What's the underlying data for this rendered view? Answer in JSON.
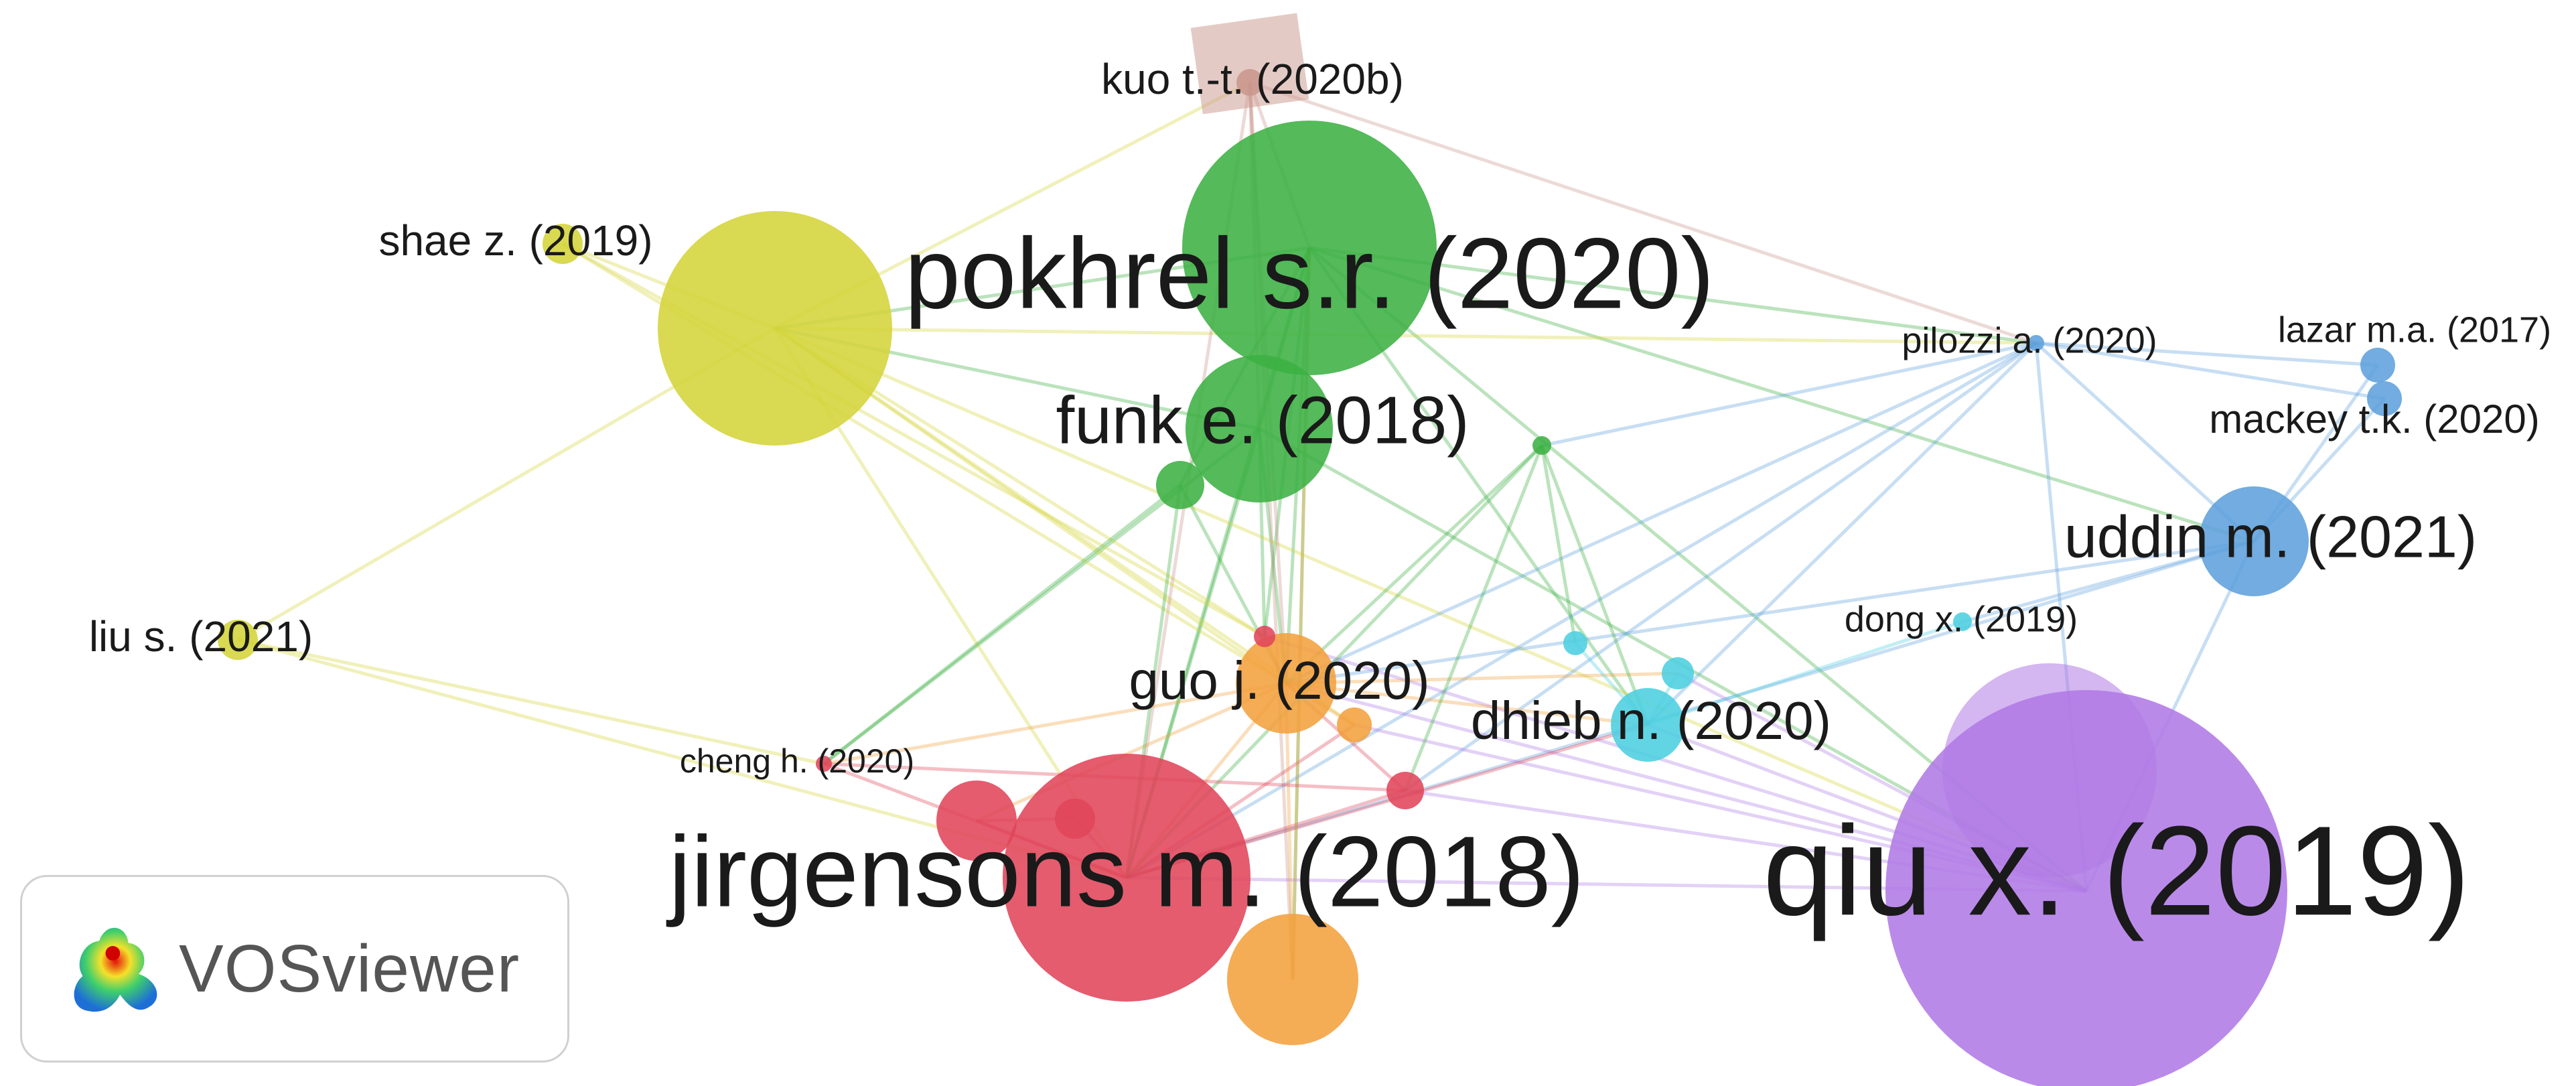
{
  "network": {
    "nodes": [
      {
        "id": "kuo",
        "label": "kuo t.-t. (2020b)",
        "cluster": "brown",
        "weight": 1
      },
      {
        "id": "pokhrel",
        "label": "pokhrel s.r. (2020)",
        "cluster": "green",
        "weight": 10
      },
      {
        "id": "funk",
        "label": "funk e. (2018)",
        "cluster": "green",
        "weight": 4
      },
      {
        "id": "g1",
        "label": "",
        "cluster": "green",
        "weight": 1
      },
      {
        "id": "g2",
        "label": "",
        "cluster": "green",
        "weight": 1
      },
      {
        "id": "shae",
        "label": "shae z. (2019)",
        "cluster": "yellow",
        "weight": 1
      },
      {
        "id": "ybig",
        "label": "",
        "cluster": "yellow",
        "weight": 8
      },
      {
        "id": "liu",
        "label": "liu s. (2021)",
        "cluster": "yellow",
        "weight": 1
      },
      {
        "id": "pilozzi",
        "label": "pilozzi a. (2020)",
        "cluster": "blue",
        "weight": 1
      },
      {
        "id": "lazar",
        "label": "lazar m.a. (2017)",
        "cluster": "blue",
        "weight": 1
      },
      {
        "id": "mackey",
        "label": "mackey t.k. (2020)",
        "cluster": "blue",
        "weight": 1
      },
      {
        "id": "uddin",
        "label": "uddin m. (2021)",
        "cluster": "blue",
        "weight": 3
      },
      {
        "id": "dong",
        "label": "dong x. (2019)",
        "cluster": "cyan",
        "weight": 1
      },
      {
        "id": "dhieb",
        "label": "dhieb n. (2020)",
        "cluster": "cyan",
        "weight": 2
      },
      {
        "id": "c1",
        "label": "",
        "cluster": "cyan",
        "weight": 1
      },
      {
        "id": "c2",
        "label": "",
        "cluster": "cyan",
        "weight": 1
      },
      {
        "id": "guo",
        "label": "guo j. (2020)",
        "cluster": "orange",
        "weight": 3
      },
      {
        "id": "o1",
        "label": "",
        "cluster": "orange",
        "weight": 1
      },
      {
        "id": "obot",
        "label": "",
        "cluster": "orange",
        "weight": 4
      },
      {
        "id": "cheng",
        "label": "cheng h. (2020)",
        "cluster": "red",
        "weight": 1
      },
      {
        "id": "jirgensons",
        "label": "jirgensons m. (2018)",
        "cluster": "red",
        "weight": 10
      },
      {
        "id": "r1",
        "label": "",
        "cluster": "red",
        "weight": 2
      },
      {
        "id": "r2",
        "label": "",
        "cluster": "red",
        "weight": 1
      },
      {
        "id": "r3",
        "label": "",
        "cluster": "red",
        "weight": 1
      },
      {
        "id": "r4",
        "label": "",
        "cluster": "red",
        "weight": 1
      },
      {
        "id": "qiu",
        "label": "qiu x. (2019)",
        "cluster": "purple",
        "weight": 12
      },
      {
        "id": "p1",
        "label": "",
        "cluster": "purple",
        "weight": 4
      }
    ],
    "edges": [
      [
        "pokhrel",
        "ybig"
      ],
      [
        "pokhrel",
        "funk"
      ],
      [
        "pokhrel",
        "guo"
      ],
      [
        "pokhrel",
        "jirgensons"
      ],
      [
        "pokhrel",
        "pilozzi"
      ],
      [
        "pokhrel",
        "qiu"
      ],
      [
        "pokhrel",
        "dhieb"
      ],
      [
        "pokhrel",
        "r1"
      ],
      [
        "pokhrel",
        "obot"
      ],
      [
        "pokhrel",
        "uddin"
      ],
      [
        "funk",
        "guo"
      ],
      [
        "funk",
        "jirgensons"
      ],
      [
        "funk",
        "ybig"
      ],
      [
        "funk",
        "r1"
      ],
      [
        "funk",
        "qiu"
      ],
      [
        "funk",
        "cheng"
      ],
      [
        "ybig",
        "guo"
      ],
      [
        "ybig",
        "jirgensons"
      ],
      [
        "ybig",
        "shae"
      ],
      [
        "ybig",
        "liu"
      ],
      [
        "ybig",
        "r1"
      ],
      [
        "ybig",
        "pilozzi"
      ],
      [
        "ybig",
        "o1"
      ],
      [
        "ybig",
        "kuo"
      ],
      [
        "ybig",
        "qiu"
      ],
      [
        "kuo",
        "pokhrel"
      ],
      [
        "kuo",
        "funk"
      ],
      [
        "kuo",
        "guo"
      ],
      [
        "kuo",
        "pilozzi"
      ],
      [
        "kuo",
        "jirgensons"
      ],
      [
        "kuo",
        "obot"
      ],
      [
        "shae",
        "guo"
      ],
      [
        "shae",
        "r1"
      ],
      [
        "liu",
        "jirgensons"
      ],
      [
        "liu",
        "cheng"
      ],
      [
        "pilozzi",
        "lazar"
      ],
      [
        "pilozzi",
        "mackey"
      ],
      [
        "pilozzi",
        "uddin"
      ],
      [
        "pilozzi",
        "guo"
      ],
      [
        "pilozzi",
        "jirgensons"
      ],
      [
        "pilozzi",
        "g2"
      ],
      [
        "pilozzi",
        "dhieb"
      ],
      [
        "pilozzi",
        "qiu"
      ],
      [
        "pilozzi",
        "r3"
      ],
      [
        "uddin",
        "qiu"
      ],
      [
        "uddin",
        "mackey"
      ],
      [
        "uddin",
        "lazar"
      ],
      [
        "uddin",
        "guo"
      ],
      [
        "uddin",
        "dong"
      ],
      [
        "uddin",
        "jirgensons"
      ],
      [
        "qiu",
        "guo"
      ],
      [
        "qiu",
        "jirgensons"
      ],
      [
        "qiu",
        "r3"
      ],
      [
        "qiu",
        "dhieb"
      ],
      [
        "qiu",
        "c2"
      ],
      [
        "qiu",
        "o1"
      ],
      [
        "qiu",
        "r1"
      ],
      [
        "guo",
        "jirgensons"
      ],
      [
        "guo",
        "dhieb"
      ],
      [
        "guo",
        "r1"
      ],
      [
        "guo",
        "r2"
      ],
      [
        "guo",
        "cheng"
      ],
      [
        "guo",
        "o1"
      ],
      [
        "guo",
        "c2"
      ],
      [
        "jirgensons",
        "dhieb"
      ],
      [
        "jirgensons",
        "r3"
      ],
      [
        "jirgensons",
        "cheng"
      ],
      [
        "jirgensons",
        "o1"
      ],
      [
        "jirgensons",
        "r2"
      ],
      [
        "g1",
        "jirgensons"
      ],
      [
        "g1",
        "guo"
      ],
      [
        "g1",
        "pokhrel"
      ],
      [
        "g1",
        "cheng"
      ],
      [
        "g2",
        "jirgensons"
      ],
      [
        "g2",
        "guo"
      ],
      [
        "g2",
        "dhieb"
      ],
      [
        "g2",
        "r3"
      ],
      [
        "g2",
        "c1"
      ],
      [
        "dhieb",
        "dong"
      ],
      [
        "dhieb",
        "c2"
      ],
      [
        "dhieb",
        "c1"
      ],
      [
        "obot",
        "guo"
      ],
      [
        "obot",
        "pokhrel"
      ],
      [
        "r3",
        "guo"
      ],
      [
        "r3",
        "cheng"
      ],
      [
        "r2",
        "r4"
      ],
      [
        "r4",
        "jirgensons"
      ]
    ]
  },
  "colors": {
    "brown": "#c9968c",
    "green": "#3cb043",
    "yellow": "#d4d43a",
    "blue": "#5ea0dc",
    "cyan": "#4ccfe0",
    "orange": "#f2a03d",
    "red": "#e0455a",
    "purple": "#b07ae6"
  },
  "logo": {
    "text": "VOSviewer",
    "icon": "vosviewer-logo-icon"
  }
}
